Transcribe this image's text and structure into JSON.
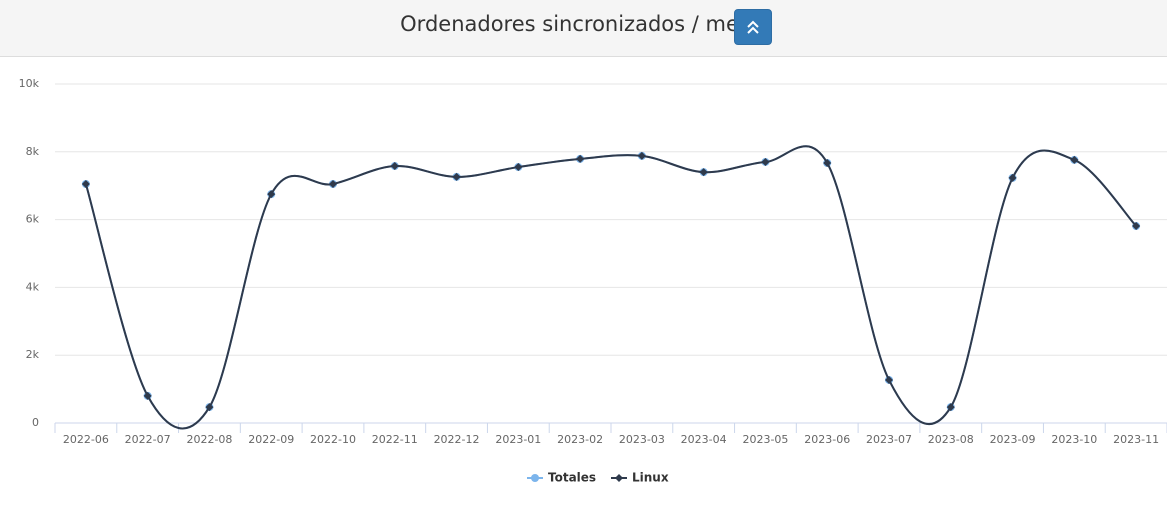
{
  "chart_data": {
    "type": "line",
    "title": "Ordenadores sincronizados / mes",
    "categories": [
      "2022-06",
      "2022-07",
      "2022-08",
      "2022-09",
      "2022-10",
      "2022-11",
      "2022-12",
      "2023-01",
      "2023-02",
      "2023-03",
      "2023-04",
      "2023-05",
      "2023-06",
      "2023-07",
      "2023-08",
      "2023-09",
      "2023-10",
      "2023-11"
    ],
    "series": [
      {
        "name": "Totales",
        "color": "#7cb5ec",
        "values": [
          7050,
          800,
          470,
          6750,
          7050,
          7580,
          7260,
          7550,
          7790,
          7880,
          7400,
          7700,
          7670,
          1270,
          470,
          7230,
          7760,
          5810
        ]
      },
      {
        "name": "Linux",
        "color": "#2f3a4c",
        "values": [
          7050,
          800,
          470,
          6750,
          7050,
          7580,
          7260,
          7550,
          7790,
          7880,
          7400,
          7700,
          7670,
          1270,
          470,
          7230,
          7760,
          5810
        ]
      }
    ],
    "ylim": [
      0,
      10000
    ],
    "yticks": [
      0,
      {
        "value": 2000,
        "label": "2k"
      },
      {
        "value": 4000,
        "label": "4k"
      },
      {
        "value": 6000,
        "label": "6k"
      },
      {
        "value": 8000,
        "label": "8k"
      },
      {
        "value": 10000,
        "label": "10k"
      }
    ],
    "grid": true,
    "legend": "bottom"
  }
}
